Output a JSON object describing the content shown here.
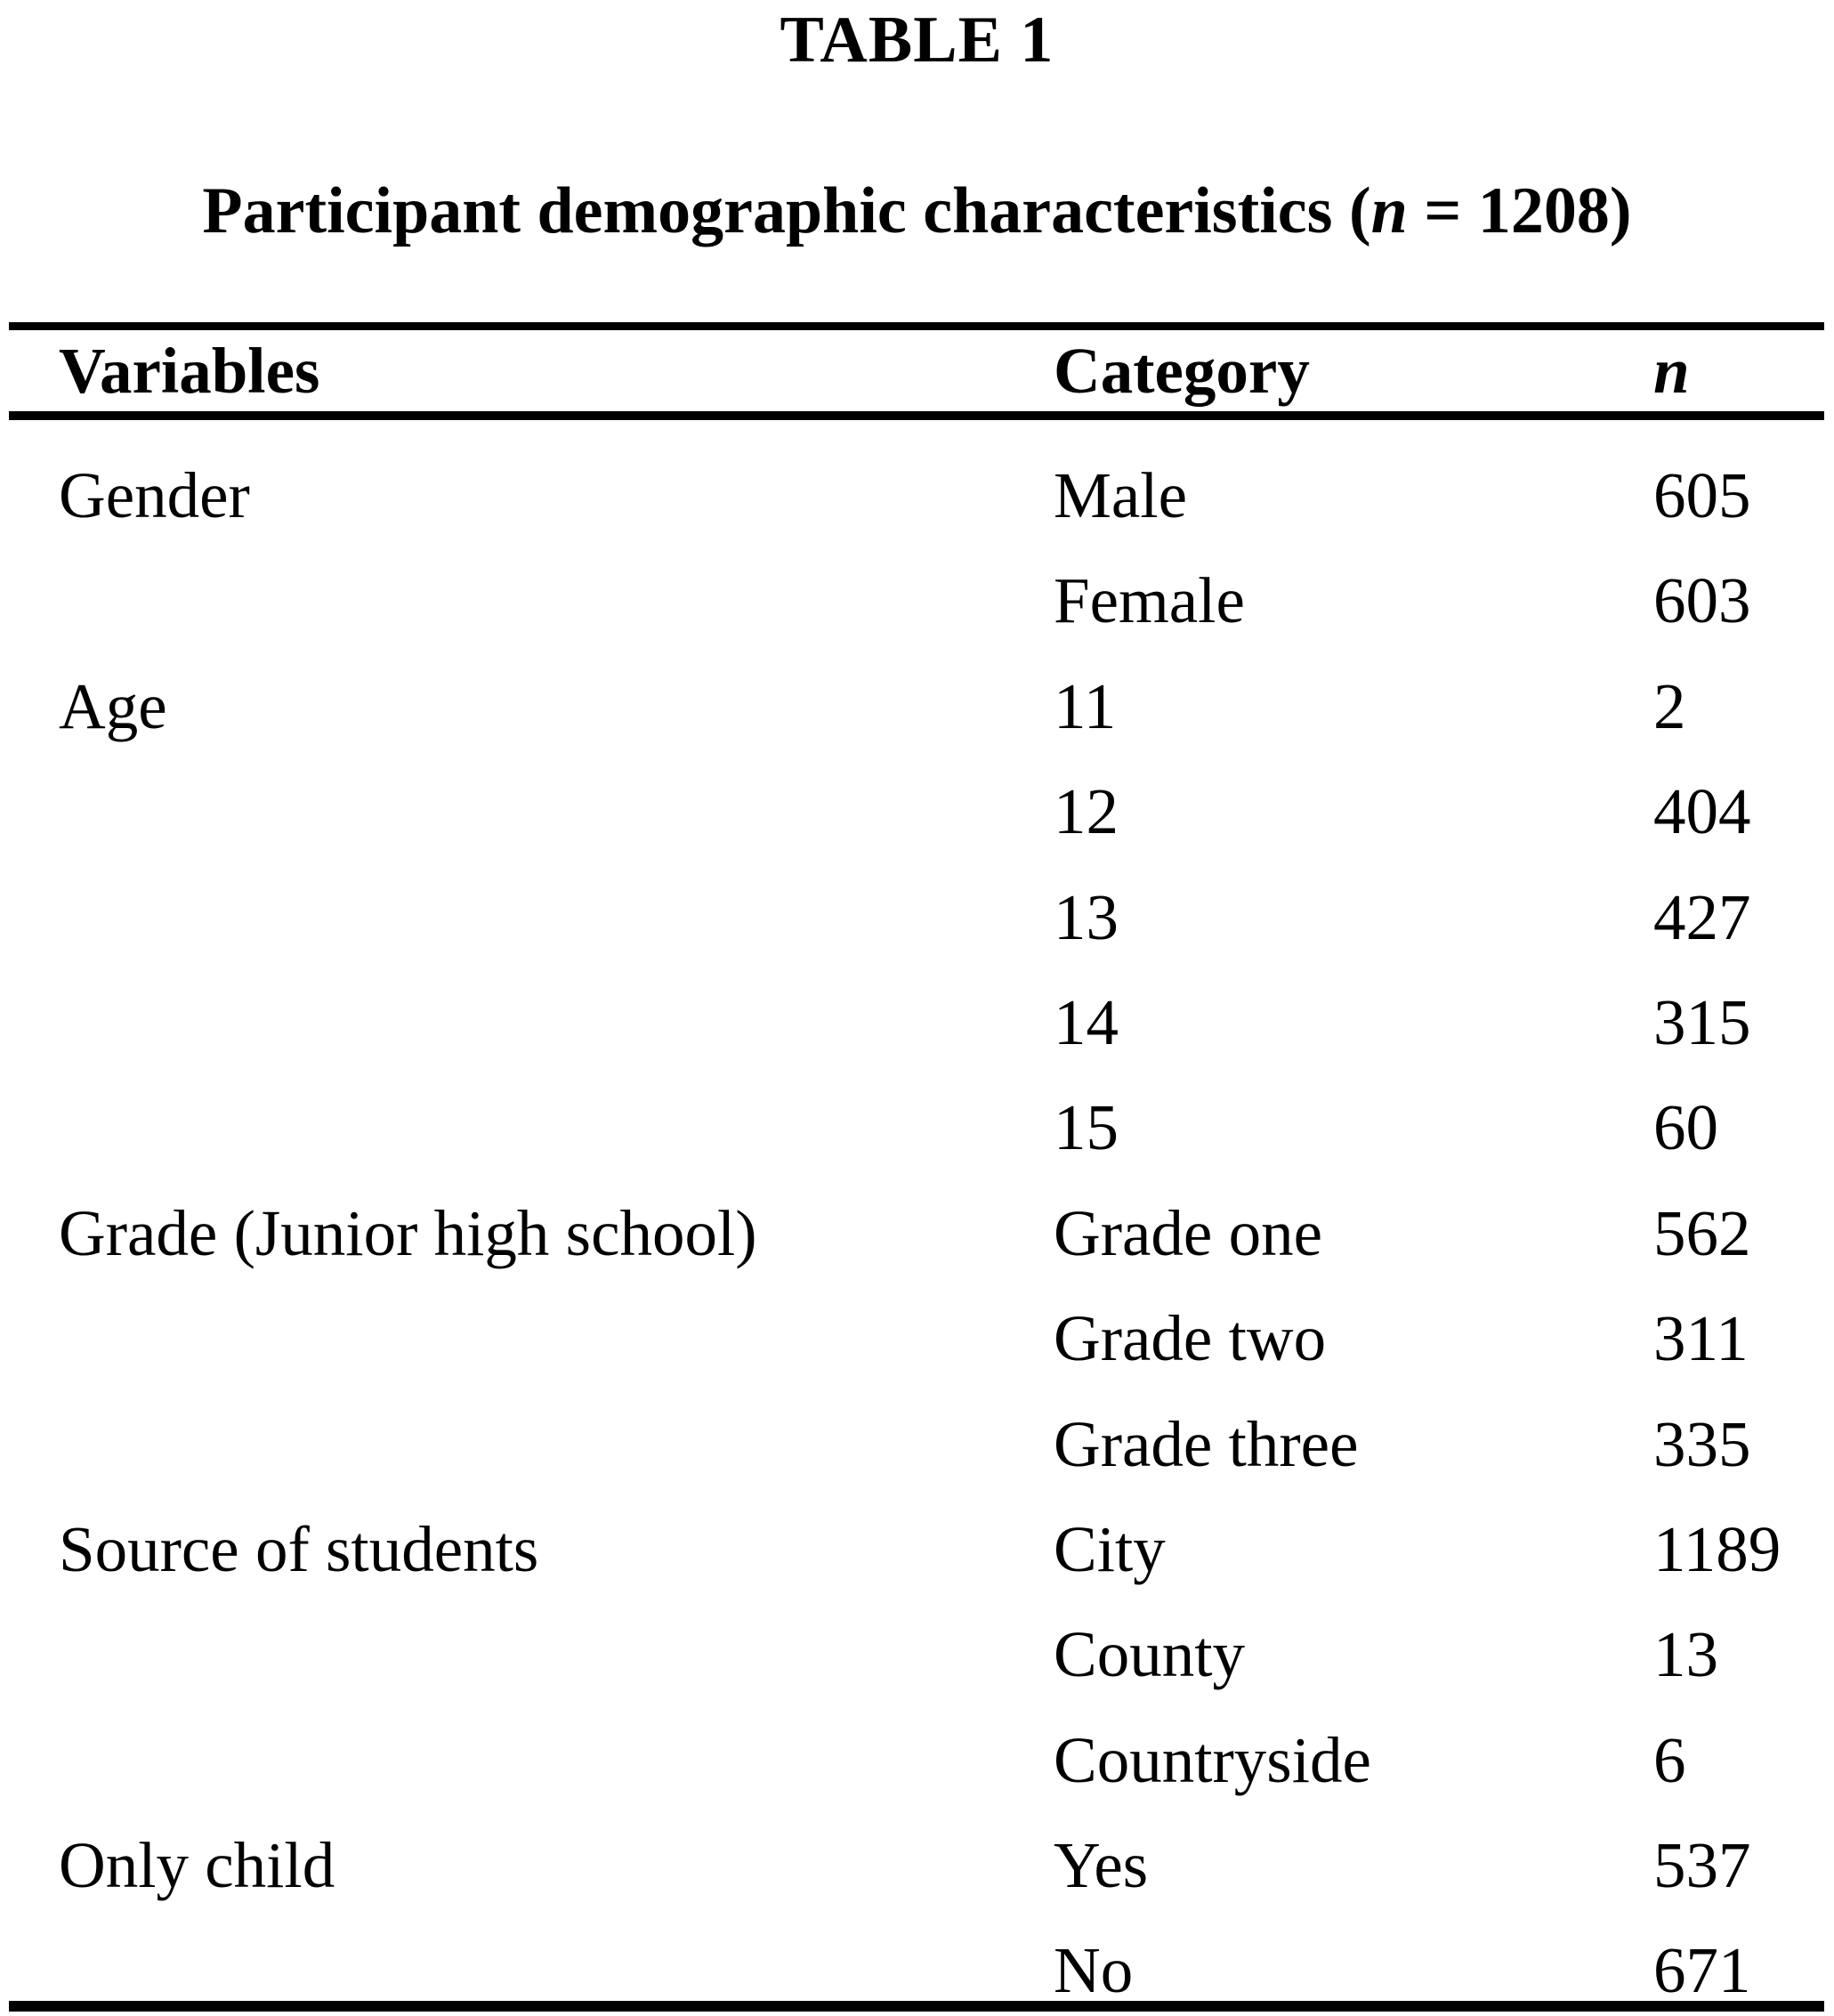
{
  "caption": "TABLE 1",
  "title": {
    "prefix": "Participant demographic characteristics (",
    "n_symbol": "n",
    "suffix": " = 1208)"
  },
  "table": {
    "columns": [
      "Variables",
      "Category",
      "n"
    ],
    "rows": [
      {
        "variable": "Gender",
        "category": "Male",
        "n": "605"
      },
      {
        "variable": "",
        "category": "Female",
        "n": "603"
      },
      {
        "variable": "Age",
        "category": "11",
        "n": "2"
      },
      {
        "variable": "",
        "category": "12",
        "n": "404"
      },
      {
        "variable": "",
        "category": "13",
        "n": "427"
      },
      {
        "variable": "",
        "category": "14",
        "n": "315"
      },
      {
        "variable": "",
        "category": "15",
        "n": "60"
      },
      {
        "variable": "Grade (Junior high school)",
        "category": "Grade one",
        "n": "562"
      },
      {
        "variable": "",
        "category": "Grade two",
        "n": "311"
      },
      {
        "variable": "",
        "category": "Grade three",
        "n": "335"
      },
      {
        "variable": "Source of students",
        "category": "City",
        "n": "1189"
      },
      {
        "variable": "",
        "category": "County",
        "n": "13"
      },
      {
        "variable": "",
        "category": "Countryside",
        "n": "6"
      },
      {
        "variable": "Only child",
        "category": "Yes",
        "n": "537"
      },
      {
        "variable": "",
        "category": "No",
        "n": "671"
      }
    ],
    "colors": {
      "text": "#000000",
      "background": "#ffffff",
      "rule": "#000000"
    }
  }
}
